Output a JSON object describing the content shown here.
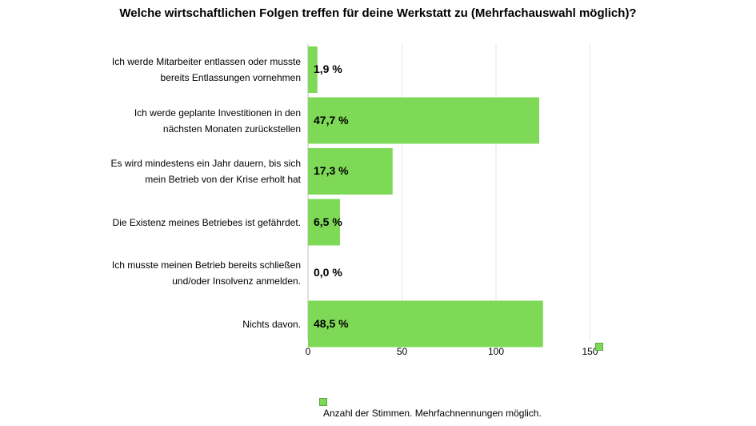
{
  "chart_data": {
    "type": "bar",
    "orientation": "horizontal",
    "title": "Welche wirtschaftlichen Folgen treffen für deine Werkstatt zu (Mehrfachauswahl möglich)?",
    "categories": [
      "Ich werde Mitarbeiter entlassen oder musste\nbereits Entlassungen vornehmen",
      "Ich werde geplante Investitionen in den\nnächsten Monaten zurückstellen",
      "Es wird mindestens ein Jahr dauern, bis sich\nmein Betrieb von der Krise erholt hat",
      "Die Existenz meines Betriebes ist gefährdet.",
      "Ich musste meinen Betrieb bereits schließen\nund/oder Insolvenz anmelden.",
      "Nichts davon."
    ],
    "values": [
      5,
      123,
      45,
      17,
      0,
      125
    ],
    "data_labels": [
      "1,9 %",
      "47,7 %",
      "17,3 %",
      "6,5 %",
      "0,0 %",
      "48,5 %"
    ],
    "xlim": [
      0,
      150
    ],
    "xticks": [
      "0",
      "50",
      "100",
      "150"
    ],
    "xtick_values": [
      0,
      50,
      100,
      150
    ],
    "grid": true,
    "bar_color": "#7ed957",
    "legend": "Anzahl der Stimmen. Mehrfachnennungen möglich."
  }
}
